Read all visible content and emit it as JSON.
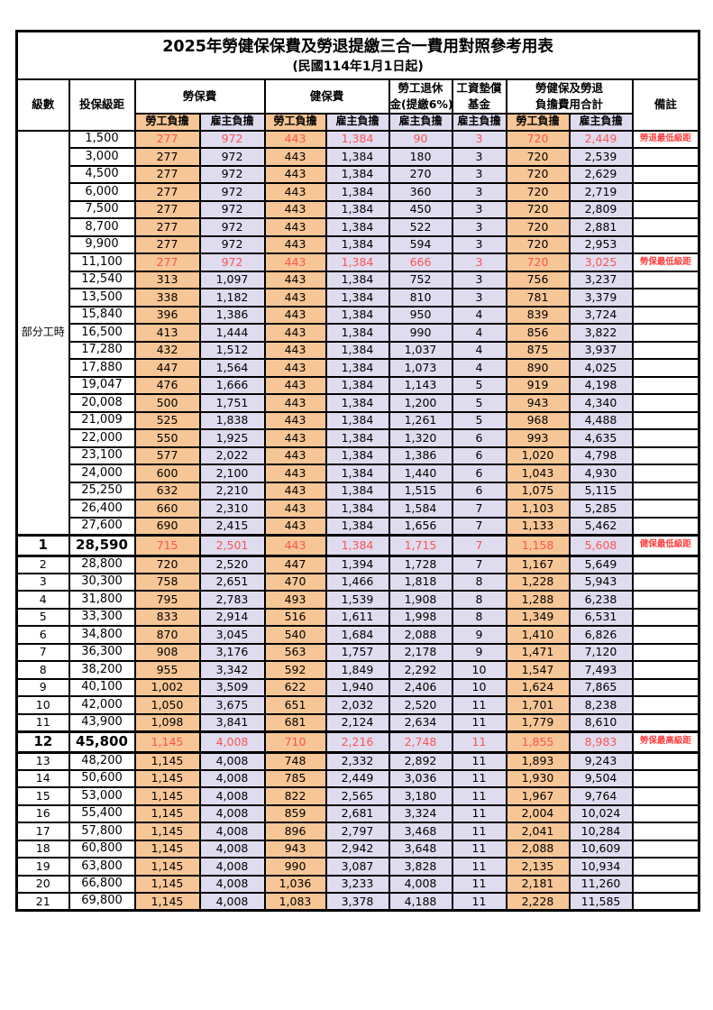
{
  "title": "2025年勞健保保費及勞退提繳三合一費用對照參考用表",
  "subtitle": "(民國114年1月1日起)",
  "colors": {
    "employee_bg": "#F7C696",
    "employer_bg": "#DFDCEF",
    "highlight_text": "#FB5454",
    "remark_text": "#FF4040"
  },
  "columns": {
    "level": "級數",
    "bracket": "投保級距",
    "labor_insurance": "勞保費",
    "health_insurance": "健保費",
    "pension_line1": "勞工退休",
    "pension_line2": "金(提繳6%)",
    "arrears_line1": "工資墊償",
    "arrears_line2": "基金",
    "total_line1": "勞健保及勞退",
    "total_line2": "負擔費用合計",
    "remark": "備註",
    "employee": "勞工負擔",
    "employer": "雇主負擔"
  },
  "part_time": {
    "label": "部分工時",
    "rowspan": 23
  },
  "rows": [
    {
      "level": null,
      "bracket": "1,500",
      "values": [
        "277",
        "972",
        "443",
        "1,384",
        "90",
        "3",
        "720",
        "2,449"
      ],
      "remark": "勞退最低級距",
      "red": true
    },
    {
      "level": null,
      "bracket": "3,000",
      "values": [
        "277",
        "972",
        "443",
        "1,384",
        "180",
        "3",
        "720",
        "2,539"
      ],
      "remark": ""
    },
    {
      "level": null,
      "bracket": "4,500",
      "values": [
        "277",
        "972",
        "443",
        "1,384",
        "270",
        "3",
        "720",
        "2,629"
      ],
      "remark": ""
    },
    {
      "level": null,
      "bracket": "6,000",
      "values": [
        "277",
        "972",
        "443",
        "1,384",
        "360",
        "3",
        "720",
        "2,719"
      ],
      "remark": ""
    },
    {
      "level": null,
      "bracket": "7,500",
      "values": [
        "277",
        "972",
        "443",
        "1,384",
        "450",
        "3",
        "720",
        "2,809"
      ],
      "remark": ""
    },
    {
      "level": null,
      "bracket": "8,700",
      "values": [
        "277",
        "972",
        "443",
        "1,384",
        "522",
        "3",
        "720",
        "2,881"
      ],
      "remark": ""
    },
    {
      "level": null,
      "bracket": "9,900",
      "values": [
        "277",
        "972",
        "443",
        "1,384",
        "594",
        "3",
        "720",
        "2,953"
      ],
      "remark": ""
    },
    {
      "level": null,
      "bracket": "11,100",
      "values": [
        "277",
        "972",
        "443",
        "1,384",
        "666",
        "3",
        "720",
        "3,025"
      ],
      "remark": "勞保最低級距",
      "red": true
    },
    {
      "level": null,
      "bracket": "12,540",
      "values": [
        "313",
        "1,097",
        "443",
        "1,384",
        "752",
        "3",
        "756",
        "3,237"
      ],
      "remark": ""
    },
    {
      "level": null,
      "bracket": "13,500",
      "values": [
        "338",
        "1,182",
        "443",
        "1,384",
        "810",
        "3",
        "781",
        "3,379"
      ],
      "remark": ""
    },
    {
      "level": null,
      "bracket": "15,840",
      "values": [
        "396",
        "1,386",
        "443",
        "1,384",
        "950",
        "4",
        "839",
        "3,724"
      ],
      "remark": ""
    },
    {
      "level": null,
      "bracket": "16,500",
      "values": [
        "413",
        "1,444",
        "443",
        "1,384",
        "990",
        "4",
        "856",
        "3,822"
      ],
      "remark": ""
    },
    {
      "level": null,
      "bracket": "17,280",
      "values": [
        "432",
        "1,512",
        "443",
        "1,384",
        "1,037",
        "4",
        "875",
        "3,937"
      ],
      "remark": ""
    },
    {
      "level": null,
      "bracket": "17,880",
      "values": [
        "447",
        "1,564",
        "443",
        "1,384",
        "1,073",
        "4",
        "890",
        "4,025"
      ],
      "remark": ""
    },
    {
      "level": null,
      "bracket": "19,047",
      "values": [
        "476",
        "1,666",
        "443",
        "1,384",
        "1,143",
        "5",
        "919",
        "4,198"
      ],
      "remark": ""
    },
    {
      "level": null,
      "bracket": "20,008",
      "values": [
        "500",
        "1,751",
        "443",
        "1,384",
        "1,200",
        "5",
        "943",
        "4,340"
      ],
      "remark": ""
    },
    {
      "level": null,
      "bracket": "21,009",
      "values": [
        "525",
        "1,838",
        "443",
        "1,384",
        "1,261",
        "5",
        "968",
        "4,488"
      ],
      "remark": ""
    },
    {
      "level": null,
      "bracket": "22,000",
      "values": [
        "550",
        "1,925",
        "443",
        "1,384",
        "1,320",
        "6",
        "993",
        "4,635"
      ],
      "remark": ""
    },
    {
      "level": null,
      "bracket": "23,100",
      "values": [
        "577",
        "2,022",
        "443",
        "1,384",
        "1,386",
        "6",
        "1,020",
        "4,798"
      ],
      "remark": ""
    },
    {
      "level": null,
      "bracket": "24,000",
      "values": [
        "600",
        "2,100",
        "443",
        "1,384",
        "1,440",
        "6",
        "1,043",
        "4,930"
      ],
      "remark": ""
    },
    {
      "level": null,
      "bracket": "25,250",
      "values": [
        "632",
        "2,210",
        "443",
        "1,384",
        "1,515",
        "6",
        "1,075",
        "5,115"
      ],
      "remark": ""
    },
    {
      "level": null,
      "bracket": "26,400",
      "values": [
        "660",
        "2,310",
        "443",
        "1,384",
        "1,584",
        "7",
        "1,103",
        "5,285"
      ],
      "remark": ""
    },
    {
      "level": null,
      "bracket": "27,600",
      "values": [
        "690",
        "2,415",
        "443",
        "1,384",
        "1,656",
        "7",
        "1,133",
        "5,462"
      ],
      "remark": ""
    },
    {
      "level": "1",
      "bracket": "28,590",
      "values": [
        "715",
        "2,501",
        "443",
        "1,384",
        "1,715",
        "7",
        "1,158",
        "5,608"
      ],
      "remark": "健保最低級距",
      "red": true,
      "bold": true
    },
    {
      "level": "2",
      "bracket": "28,800",
      "values": [
        "720",
        "2,520",
        "447",
        "1,394",
        "1,728",
        "7",
        "1,167",
        "5,649"
      ],
      "remark": ""
    },
    {
      "level": "3",
      "bracket": "30,300",
      "values": [
        "758",
        "2,651",
        "470",
        "1,466",
        "1,818",
        "8",
        "1,228",
        "5,943"
      ],
      "remark": ""
    },
    {
      "level": "4",
      "bracket": "31,800",
      "values": [
        "795",
        "2,783",
        "493",
        "1,539",
        "1,908",
        "8",
        "1,288",
        "6,238"
      ],
      "remark": ""
    },
    {
      "level": "5",
      "bracket": "33,300",
      "values": [
        "833",
        "2,914",
        "516",
        "1,611",
        "1,998",
        "8",
        "1,349",
        "6,531"
      ],
      "remark": ""
    },
    {
      "level": "6",
      "bracket": "34,800",
      "values": [
        "870",
        "3,045",
        "540",
        "1,684",
        "2,088",
        "9",
        "1,410",
        "6,826"
      ],
      "remark": ""
    },
    {
      "level": "7",
      "bracket": "36,300",
      "values": [
        "908",
        "3,176",
        "563",
        "1,757",
        "2,178",
        "9",
        "1,471",
        "7,120"
      ],
      "remark": ""
    },
    {
      "level": "8",
      "bracket": "38,200",
      "values": [
        "955",
        "3,342",
        "592",
        "1,849",
        "2,292",
        "10",
        "1,547",
        "7,493"
      ],
      "remark": ""
    },
    {
      "level": "9",
      "bracket": "40,100",
      "values": [
        "1,002",
        "3,509",
        "622",
        "1,940",
        "2,406",
        "10",
        "1,624",
        "7,865"
      ],
      "remark": ""
    },
    {
      "level": "10",
      "bracket": "42,000",
      "values": [
        "1,050",
        "3,675",
        "651",
        "2,032",
        "2,520",
        "11",
        "1,701",
        "8,238"
      ],
      "remark": ""
    },
    {
      "level": "11",
      "bracket": "43,900",
      "values": [
        "1,098",
        "3,841",
        "681",
        "2,124",
        "2,634",
        "11",
        "1,779",
        "8,610"
      ],
      "remark": ""
    },
    {
      "level": "12",
      "bracket": "45,800",
      "values": [
        "1,145",
        "4,008",
        "710",
        "2,216",
        "2,748",
        "11",
        "1,855",
        "8,983"
      ],
      "remark": "勞保最高級距",
      "red": true,
      "bold": true
    },
    {
      "level": "13",
      "bracket": "48,200",
      "values": [
        "1,145",
        "4,008",
        "748",
        "2,332",
        "2,892",
        "11",
        "1,893",
        "9,243"
      ],
      "remark": ""
    },
    {
      "level": "14",
      "bracket": "50,600",
      "values": [
        "1,145",
        "4,008",
        "785",
        "2,449",
        "3,036",
        "11",
        "1,930",
        "9,504"
      ],
      "remark": ""
    },
    {
      "level": "15",
      "bracket": "53,000",
      "values": [
        "1,145",
        "4,008",
        "822",
        "2,565",
        "3,180",
        "11",
        "1,967",
        "9,764"
      ],
      "remark": ""
    },
    {
      "level": "16",
      "bracket": "55,400",
      "values": [
        "1,145",
        "4,008",
        "859",
        "2,681",
        "3,324",
        "11",
        "2,004",
        "10,024"
      ],
      "remark": ""
    },
    {
      "level": "17",
      "bracket": "57,800",
      "values": [
        "1,145",
        "4,008",
        "896",
        "2,797",
        "3,468",
        "11",
        "2,041",
        "10,284"
      ],
      "remark": ""
    },
    {
      "level": "18",
      "bracket": "60,800",
      "values": [
        "1,145",
        "4,008",
        "943",
        "2,942",
        "3,648",
        "11",
        "2,088",
        "10,609"
      ],
      "remark": ""
    },
    {
      "level": "19",
      "bracket": "63,800",
      "values": [
        "1,145",
        "4,008",
        "990",
        "3,087",
        "3,828",
        "11",
        "2,135",
        "10,934"
      ],
      "remark": ""
    },
    {
      "level": "20",
      "bracket": "66,800",
      "values": [
        "1,145",
        "4,008",
        "1,036",
        "3,233",
        "4,008",
        "11",
        "2,181",
        "11,260"
      ],
      "remark": ""
    },
    {
      "level": "21",
      "bracket": "69,800",
      "values": [
        "1,145",
        "4,008",
        "1,083",
        "3,378",
        "4,188",
        "11",
        "2,228",
        "11,585"
      ],
      "remark": ""
    }
  ]
}
